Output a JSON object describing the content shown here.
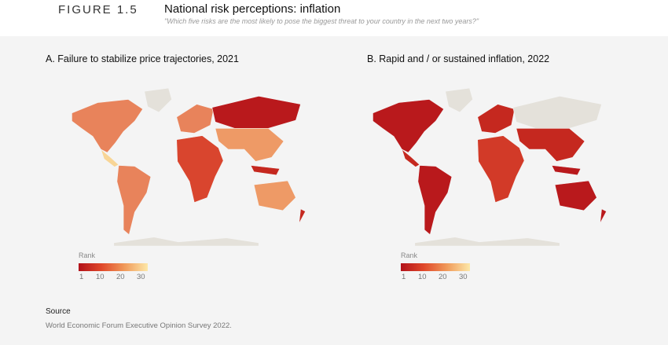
{
  "header": {
    "figure": "FIGURE 1.5",
    "title": "National risk perceptions: inflation",
    "subtitle": "\"Which five risks are the most likely to pose the biggest threat to your country in the next two years?\""
  },
  "panels": [
    {
      "title": "A. Failure to stabilize price trajectories, 2021",
      "fills": {
        "north_america": "#e8835b",
        "greenland": "#e4e1da",
        "central_america": "#f8d596",
        "south_america": "#e8835b",
        "europe": "#e8835b",
        "africa": "#d9452e",
        "russia": "#b9191c",
        "south_asia": "#ee9a66",
        "indonesia": "#c5281f",
        "australia": "#ee9a66",
        "new_zealand": "#c5281f",
        "antarctica": "#e4e1da"
      }
    },
    {
      "title": "B. Rapid and / or sustained inflation, 2022",
      "fills": {
        "north_america": "#b9191c",
        "greenland": "#e4e1da",
        "central_america": "#c5281f",
        "south_america": "#b9191c",
        "europe": "#c5281f",
        "africa": "#d23a28",
        "russia": "#e4e1da",
        "south_asia": "#c5281f",
        "indonesia": "#b9191c",
        "australia": "#b9191c",
        "new_zealand": "#b9191c",
        "antarctica": "#e4e1da"
      }
    }
  ],
  "legend": {
    "label": "Rank",
    "ticks": [
      "1",
      "10",
      "20",
      "30"
    ],
    "scale_colors": [
      "#b2121a",
      "#fde8a8"
    ]
  },
  "source": {
    "label": "Source",
    "text": "World Economic Forum Executive Opinion Survey 2022."
  }
}
